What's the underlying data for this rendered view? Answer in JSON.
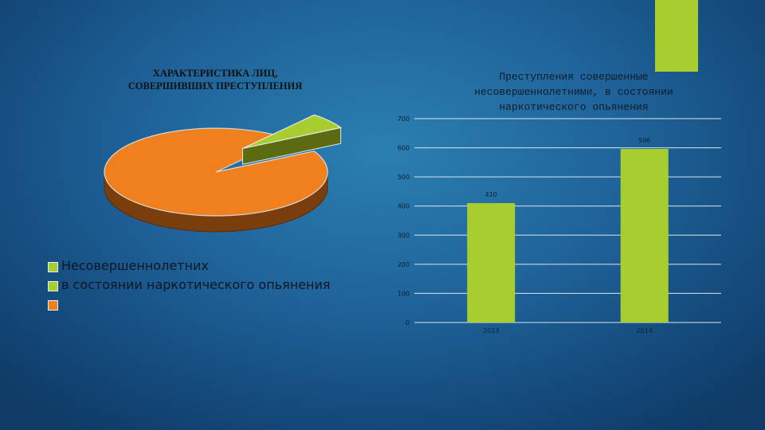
{
  "colors": {
    "accent": "#a8cd2e",
    "pie_big": "#f07f1e",
    "pie_big_side": "#7a3d0c",
    "pie_small": "#a8cd2e",
    "pie_small_side": "#5c6b12",
    "bar": "#a8cd2e",
    "gridline": "#d8e6f0"
  },
  "pie_chart": {
    "title_line1": "ХАРАКТЕРИСТИКА ЛИЦ,",
    "title_line2": "СОВЕРШИВШИХ ПРЕСТУПЛЕНИЯ"
  },
  "legend": {
    "items": [
      {
        "label": "Несовершеннолетних",
        "color": "#a8cd2e"
      },
      {
        "label": "в состоянии наркотического опьянения",
        "color": "#a8cd2e"
      },
      {
        "label": "",
        "color": "#f07f1e"
      }
    ]
  },
  "bar_chart": {
    "title_line1": "Преступления совершенные",
    "title_line2": "несовершеннолетними, в состоянии",
    "title_line3": "наркотического опьянения"
  },
  "chart_data": [
    {
      "type": "pie",
      "title": "ХАРАКТЕРИСТИКА ЛИЦ, СОВЕРШИВШИХ ПРЕСТУПЛЕНИЯ",
      "labels": [
        "Несовершеннолетних в состоянии наркотического опьянения",
        ""
      ],
      "values": [
        6,
        94
      ],
      "exploded": [
        true,
        false
      ]
    },
    {
      "type": "bar",
      "title": "Преступления совершенные несовершеннолетними, в состоянии наркотического опьянения",
      "categories": [
        "2013",
        "2014"
      ],
      "values": [
        410,
        596
      ],
      "yticks": [
        0,
        100,
        200,
        300,
        400,
        500,
        600,
        700
      ],
      "ylim": [
        0,
        700
      ],
      "xlabel": "",
      "ylabel": "",
      "grid": true
    }
  ]
}
